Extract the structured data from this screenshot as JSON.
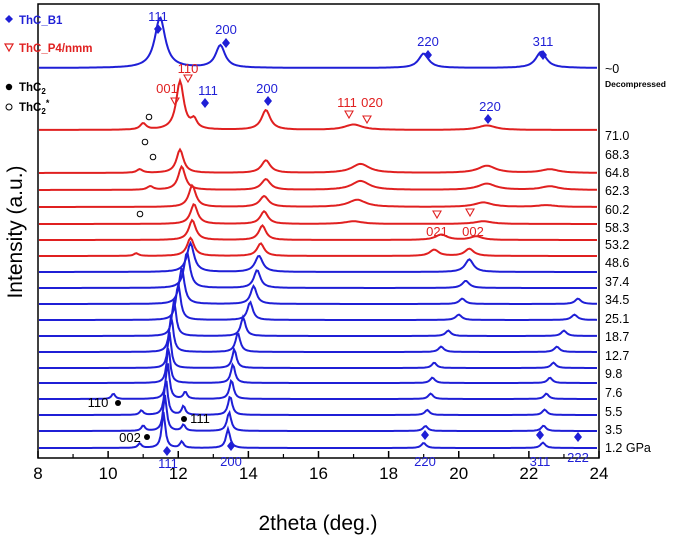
{
  "chart_data": {
    "type": "line",
    "xlabel": "2theta (deg.)",
    "ylabel": "Intensity (a.u.)",
    "xlim": [
      8,
      24
    ],
    "xticks": [
      "8",
      "10",
      "12",
      "14",
      "16",
      "18",
      "20",
      "22",
      "24"
    ],
    "grid": false,
    "legend": {
      "thc_b1": "ThC_B1",
      "thc_p4": "ThC_P4/nmm",
      "thc2_main": "ThC",
      "thc2_sub": "2",
      "thc2s_main": "ThC",
      "thc2s_sub": "2",
      "thc2s_sup": "*"
    },
    "colors": {
      "b1": "#1f1fd6",
      "p4": "#e02020",
      "thc2": "#000000",
      "axis": "#000000"
    },
    "traces": [
      {
        "label": "1.2 GPa",
        "phase": "B1",
        "peaks": [
          [
            10.9,
            0.25,
            0.06
          ],
          [
            11.58,
            2.0,
            0.06
          ],
          [
            12.1,
            0.35,
            0.06
          ],
          [
            13.42,
            1.05,
            0.07
          ],
          [
            19.0,
            0.28,
            0.08
          ],
          [
            22.4,
            0.3,
            0.08
          ]
        ]
      },
      {
        "label": "3.5",
        "phase": "B1",
        "peaks": [
          [
            11.0,
            0.3,
            0.06
          ],
          [
            11.62,
            2.0,
            0.06
          ],
          [
            12.15,
            0.35,
            0.06
          ],
          [
            13.45,
            1.05,
            0.07
          ],
          [
            19.05,
            0.28,
            0.08
          ],
          [
            22.42,
            0.3,
            0.08
          ]
        ]
      },
      {
        "label": "5.5",
        "phase": "B1",
        "peaks": [
          [
            10.95,
            0.25,
            0.06
          ],
          [
            11.65,
            2.0,
            0.06
          ],
          [
            12.15,
            0.5,
            0.06
          ],
          [
            13.48,
            1.05,
            0.07
          ],
          [
            19.1,
            0.28,
            0.08
          ],
          [
            22.45,
            0.3,
            0.08
          ]
        ]
      },
      {
        "label": "7.6",
        "phase": "B1",
        "peaks": [
          [
            10.15,
            0.3,
            0.06
          ],
          [
            11.7,
            2.0,
            0.06
          ],
          [
            12.2,
            0.4,
            0.06
          ],
          [
            13.52,
            1.05,
            0.07
          ],
          [
            19.2,
            0.3,
            0.08
          ],
          [
            22.5,
            0.3,
            0.08
          ]
        ]
      },
      {
        "label": "9.8",
        "phase": "B1",
        "peaks": [
          [
            11.72,
            2.0,
            0.06
          ],
          [
            13.56,
            1.05,
            0.07
          ],
          [
            19.25,
            0.3,
            0.08
          ],
          [
            22.6,
            0.3,
            0.08
          ]
        ]
      },
      {
        "label": "12.7",
        "phase": "B1",
        "peaks": [
          [
            11.75,
            2.0,
            0.06
          ],
          [
            13.6,
            1.05,
            0.07
          ],
          [
            19.3,
            0.3,
            0.08
          ],
          [
            22.7,
            0.3,
            0.08
          ]
        ]
      },
      {
        "label": "18.7",
        "phase": "B1",
        "peaks": [
          [
            11.8,
            2.0,
            0.07
          ],
          [
            13.7,
            1.05,
            0.08
          ],
          [
            19.5,
            0.3,
            0.09
          ],
          [
            22.8,
            0.3,
            0.09
          ]
        ]
      },
      {
        "label": "25.1",
        "phase": "B1",
        "peaks": [
          [
            11.88,
            2.0,
            0.07
          ],
          [
            13.85,
            1.05,
            0.08
          ],
          [
            19.7,
            0.3,
            0.09
          ],
          [
            23.0,
            0.3,
            0.09
          ]
        ]
      },
      {
        "label": "34.5",
        "phase": "B1",
        "peaks": [
          [
            12.0,
            2.0,
            0.08
          ],
          [
            14.05,
            1.0,
            0.09
          ],
          [
            20.0,
            0.3,
            0.1
          ],
          [
            23.3,
            0.3,
            0.1
          ]
        ]
      },
      {
        "label": "37.4",
        "phase": "B1",
        "peaks": [
          [
            12.1,
            2.0,
            0.09
          ],
          [
            14.15,
            1.0,
            0.1
          ],
          [
            20.1,
            0.3,
            0.1
          ],
          [
            23.4,
            0.3,
            0.1
          ]
        ]
      },
      {
        "label": "48.6",
        "phase": "B1",
        "peaks": [
          [
            12.25,
            2.0,
            0.1
          ],
          [
            14.25,
            1.0,
            0.11
          ],
          [
            20.2,
            0.4,
            0.12
          ]
        ]
      },
      {
        "label": "53.2",
        "phase": "B1",
        "peaks": [
          [
            12.35,
            1.6,
            0.12
          ],
          [
            14.3,
            0.9,
            0.13
          ],
          [
            20.3,
            0.7,
            0.14
          ]
        ]
      },
      {
        "label": "58.3",
        "phase": "P4",
        "peaks": [
          [
            10.8,
            0.15,
            0.08
          ],
          [
            12.35,
            1.0,
            0.12
          ],
          [
            14.35,
            0.7,
            0.12
          ],
          [
            19.3,
            0.35,
            0.15
          ],
          [
            20.3,
            0.4,
            0.15
          ]
        ]
      },
      {
        "label": "60.2",
        "phase": "P4",
        "peaks": [
          [
            12.4,
            1.1,
            0.12
          ],
          [
            14.4,
            0.8,
            0.12
          ],
          [
            19.5,
            0.3,
            0.2
          ],
          [
            20.5,
            0.2,
            0.2
          ]
        ]
      },
      {
        "label": "62.3",
        "phase": "P4",
        "peaks": [
          [
            12.45,
            1.1,
            0.12
          ],
          [
            14.45,
            0.7,
            0.13
          ],
          [
            17.0,
            0.15,
            0.3
          ],
          [
            20.7,
            0.15,
            0.3
          ]
        ]
      },
      {
        "label": "64.8",
        "phase": "P4",
        "peaks": [
          [
            12.4,
            1.2,
            0.12
          ],
          [
            14.45,
            0.6,
            0.15
          ],
          [
            17.1,
            0.4,
            0.3
          ],
          [
            20.7,
            0.25,
            0.3
          ],
          [
            22.5,
            0.1,
            0.3
          ]
        ]
      },
      {
        "label": "68.3",
        "phase": "P4",
        "peaks": [
          [
            11.2,
            0.2,
            0.1
          ],
          [
            12.1,
            1.3,
            0.12
          ],
          [
            14.5,
            0.6,
            0.15
          ],
          [
            17.2,
            0.5,
            0.3
          ],
          [
            20.8,
            0.35,
            0.3
          ],
          [
            22.6,
            0.2,
            0.3
          ]
        ]
      },
      {
        "label": "71.0",
        "phase": "P4",
        "peaks": [
          [
            10.9,
            0.2,
            0.1
          ],
          [
            12.05,
            1.3,
            0.12
          ],
          [
            14.5,
            0.7,
            0.15
          ],
          [
            17.2,
            0.5,
            0.3
          ],
          [
            20.8,
            0.4,
            0.3
          ],
          [
            22.6,
            0.2,
            0.3
          ]
        ]
      },
      {
        "label": "~0",
        "phase": "P4",
        "peaks": [
          [
            11.0,
            0.35,
            0.1
          ],
          [
            12.05,
            2.7,
            0.13
          ],
          [
            12.45,
            0.5,
            0.1
          ],
          [
            14.5,
            1.1,
            0.15
          ],
          [
            17.0,
            0.3,
            0.3
          ],
          [
            20.8,
            0.25,
            0.3
          ]
        ]
      },
      {
        "label": "",
        "phase": "B1",
        "peaks": [
          [
            11.48,
            2.8,
            0.18
          ],
          [
            13.2,
            1.25,
            0.16
          ],
          [
            19.0,
            0.8,
            0.17
          ],
          [
            22.35,
            0.9,
            0.18
          ]
        ]
      }
    ],
    "annotations": [
      {
        "text": "Decompressed",
        "color": "#000000",
        "bold": true
      },
      {
        "text": "111",
        "color": "#1f1fd6",
        "x": 11.5
      },
      {
        "text": "200",
        "color": "#1f1fd6",
        "x": 13.2
      },
      {
        "text": "220",
        "color": "#1f1fd6",
        "x": 19.0
      },
      {
        "text": "311",
        "color": "#1f1fd6",
        "x": 22.3
      },
      {
        "text": "110",
        "color": "#e02020",
        "x": 12.05
      },
      {
        "text": "001",
        "color": "#e02020",
        "x": 11.7
      },
      {
        "text": "111",
        "color": "#1f1fd6",
        "x": 12.6
      },
      {
        "text": "200",
        "color": "#1f1fd6",
        "x": 14.5
      },
      {
        "text": "111",
        "color": "#e02020",
        "x": 16.9
      },
      {
        "text": "020",
        "color": "#e02020",
        "x": 17.3
      },
      {
        "text": "220",
        "color": "#1f1fd6",
        "x": 20.8
      },
      {
        "text": "021",
        "color": "#e02020",
        "x": 19.3
      },
      {
        "text": "002",
        "color": "#e02020",
        "x": 20.3
      },
      {
        "text": "110",
        "color": "#000000",
        "x": 10.15
      },
      {
        "text": "111",
        "color": "#000000",
        "x": 12.15
      },
      {
        "text": "002",
        "color": "#000000",
        "x": 10.95
      },
      {
        "text": "111",
        "color": "#1f1fd6",
        "x": 11.58
      },
      {
        "text": "200",
        "color": "#1f1fd6",
        "x": 13.42
      },
      {
        "text": "220",
        "color": "#1f1fd6",
        "x": 19.0
      },
      {
        "text": "311",
        "color": "#1f1fd6",
        "x": 22.35
      },
      {
        "text": "222",
        "color": "#1f1fd6",
        "x": 23.3
      }
    ]
  }
}
